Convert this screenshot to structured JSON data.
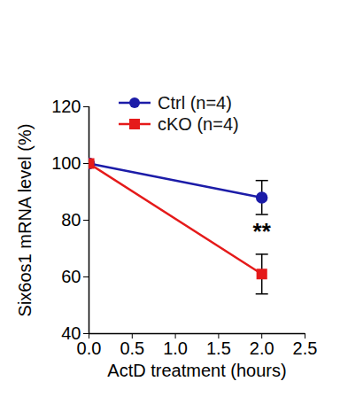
{
  "chart_data": {
    "type": "line",
    "xlabel": "ActD treatment (hours)",
    "ylabel": "Six6os1 mRNA level (%)",
    "x": [
      0,
      2
    ],
    "series": [
      {
        "name": "Ctrl (n=4)",
        "color": "#1c1ca8",
        "marker": "circle",
        "values": [
          100,
          88
        ],
        "errors": [
          0,
          6
        ]
      },
      {
        "name": "cKO (n=4)",
        "color": "#e51a1a",
        "marker": "square",
        "values": [
          100,
          61
        ],
        "errors": [
          0,
          7
        ]
      }
    ],
    "xlim": [
      0,
      2.5
    ],
    "xticks": [
      {
        "value": 0,
        "label": "0.0"
      },
      0.5,
      {
        "value": 1,
        "label": "1.0"
      },
      1.5,
      {
        "value": 2,
        "label": "2.0"
      },
      2.5
    ],
    "ylim": [
      40,
      120
    ],
    "yticks": [
      40,
      60,
      80,
      100,
      120
    ],
    "legend": "upper center",
    "annotations": [
      {
        "text": "**",
        "x": 2,
        "y": 76
      }
    ]
  }
}
